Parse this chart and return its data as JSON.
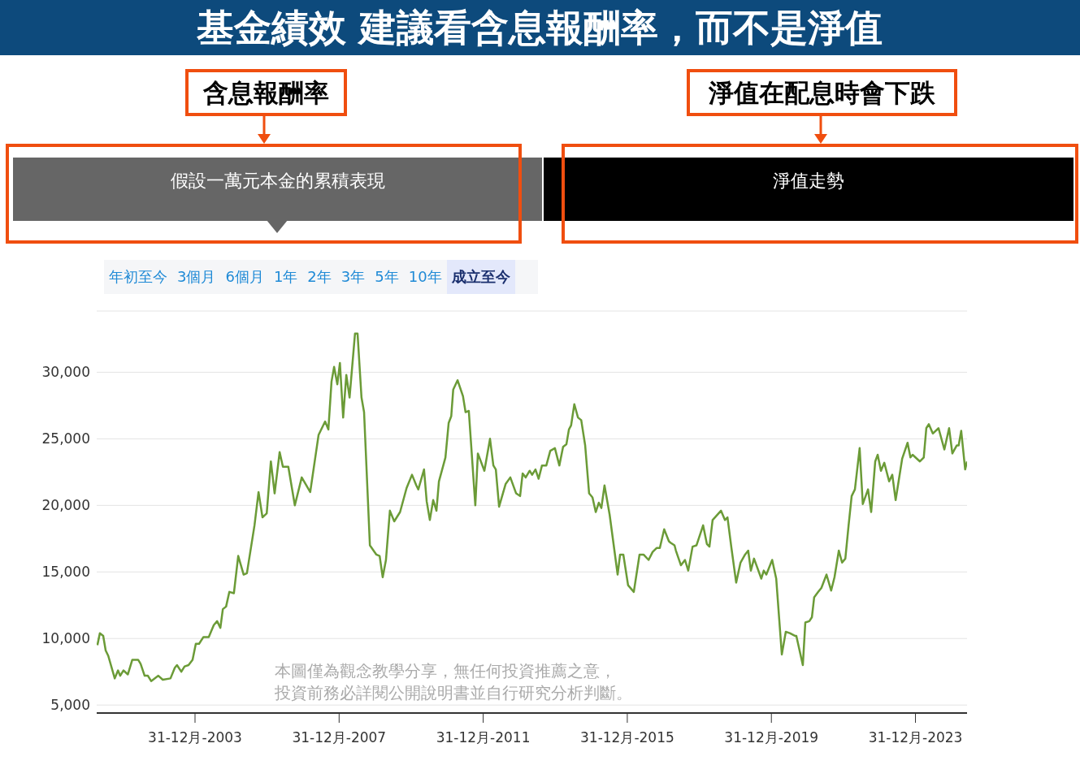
{
  "chart_data": {
    "type": "line",
    "title": "基金績效 建議看含息報酬率，而不是淨值",
    "annotations": [
      "含息報酬率",
      "淨值在配息時會下跌",
      "假設一萬元本金的累積表現",
      "淨值走勢",
      "年初至今",
      "3個月",
      "6個月",
      "1年",
      "2年",
      "3年",
      "5年",
      "10年",
      "成立至今",
      "本圖僅為觀念教學分享，無任何投資推薦之意，",
      "投資前務必詳閱公開說明書並自行研究分析判斷。"
    ],
    "x": [
      "2001-04-15",
      "2001-05-10",
      "2001-06-13",
      "2001-07-08",
      "2001-08-03",
      "2001-10-08",
      "2001-11-10",
      "2001-12-02",
      "2002-01-04",
      "2002-02-18",
      "2002-04-04",
      "2002-06-02",
      "2002-06-27",
      "2002-08-07",
      "2002-09-09",
      "2002-10-12",
      "2002-12-24",
      "2003-02-07",
      "2003-04-26",
      "2003-06-09",
      "2003-07-01",
      "2003-08-14",
      "2003-09-16",
      "2003-10-26",
      "2003-12-06",
      "2004-01-08",
      "2004-02-10",
      "2004-03-24",
      "2004-05-18",
      "2004-07-08",
      "2004-08-11",
      "2004-09-13",
      "2004-10-08",
      "2004-11-10",
      "2004-12-13",
      "2005-01-28",
      "2005-03-13",
      "2005-05-07",
      "2005-06-09",
      "2005-08-25",
      "2005-10-05",
      "2005-11-14",
      "2005-12-27",
      "2006-02-07",
      "2006-03-17",
      "2006-05-07",
      "2006-06-09",
      "2006-08-03",
      "2006-10-08",
      "2006-12-17",
      "2007-03-13",
      "2007-06-06",
      "2007-08-11",
      "2007-09-13",
      "2007-10-15",
      "2007-11-10",
      "2007-12-13",
      "2008-01-08",
      "2008-02-10",
      "2008-03-13",
      "2008-04-15",
      "2008-06-09",
      "2008-07-05",
      "2008-08-14",
      "2008-09-09",
      "2008-11-07",
      "2009-01-12",
      "2009-02-14",
      "2009-03-17",
      "2009-04-19",
      "2009-05-29",
      "2009-07-12",
      "2009-09-09",
      "2009-11-14",
      "2010-01-08",
      "2010-02-21",
      "2010-03-13",
      "2010-05-10",
      "2010-06-06",
      "2010-07-08",
      "2010-08-11",
      "2010-09-13",
      "2010-10-08",
      "2010-12-13",
      "2011-01-15",
      "2011-02-10",
      "2011-03-02",
      "2011-04-15",
      "2011-06-09",
      "2011-07-05",
      "2011-08-07",
      "2011-10-12",
      "2011-11-07",
      "2012-01-12",
      "2012-03-09",
      "2012-04-12",
      "2012-05-07",
      "2012-06-09",
      "2012-08-14",
      "2012-10-01",
      "2012-11-29",
      "2013-01-08",
      "2013-02-03",
      "2013-03-06",
      "2013-04-15",
      "2013-05-10",
      "2013-06-13",
      "2013-07-15",
      "2013-08-18",
      "2013-10-01",
      "2013-11-10",
      "2013-12-27",
      "2014-02-10",
      "2014-03-20",
      "2014-04-23",
      "2014-05-18",
      "2014-06-09",
      "2014-07-12",
      "2014-08-18",
      "2014-09-20",
      "2014-10-30",
      "2014-12-09",
      "2015-01-12",
      "2015-02-14",
      "2015-03-17",
      "2015-04-12",
      "2015-05-14",
      "2015-07-05",
      "2015-09-24",
      "2015-10-19",
      "2015-11-21",
      "2016-01-08",
      "2016-03-06",
      "2016-05-03",
      "2016-06-13",
      "2016-08-03",
      "2016-09-13",
      "2016-10-23",
      "2016-11-25",
      "2017-01-08",
      "2017-02-25",
      "2017-03-13",
      "2017-04-23",
      "2017-05-07",
      "2017-06-27",
      "2017-08-07",
      "2017-09-09",
      "2017-10-23",
      "2017-12-02",
      "2018-02-07",
      "2018-03-17",
      "2018-04-12",
      "2018-05-14",
      "2018-08-07",
      "2018-09-16",
      "2018-10-12",
      "2018-11-21",
      "2019-01-08",
      "2019-02-21",
      "2019-04-08",
      "2019-05-10",
      "2019-06-06",
      "2019-07-08",
      "2019-09-20",
      "2019-10-15",
      "2019-11-10",
      "2020-01-08",
      "2020-02-18",
      "2020-04-15",
      "2020-05-25",
      "2020-07-05",
      "2020-08-25",
      "2020-09-09",
      "2020-11-14",
      "2020-12-09",
      "2021-01-19",
      "2021-02-14",
      "2021-03-09",
      "2021-04-19",
      "2021-05-21",
      "2021-07-12",
      "2021-08-28",
      "2021-10-01",
      "2021-11-14",
      "2021-12-17",
      "2022-01-19",
      "2022-02-21",
      "2022-03-24",
      "2022-04-26",
      "2022-06-13",
      "2022-07-15",
      "2022-09-06",
      "2022-10-08",
      "2022-11-18",
      "2022-12-13",
      "2023-01-15",
      "2023-02-18",
      "2023-04-08",
      "2023-05-10",
      "2023-06-13",
      "2023-08-18",
      "2023-10-12",
      "2023-11-10",
      "2023-12-02",
      "2024-02-14",
      "2024-03-24",
      "2024-04-19",
      "2024-05-14",
      "2024-06-24",
      "2024-08-21",
      "2024-10-19",
      "2024-12-06",
      "2025-01-08",
      "2025-02-21",
      "2025-03-13",
      "2025-04-08",
      "2025-05-18",
      "2025-06-06"
    ],
    "series": [
      {
        "color": "#6b9b37",
        "values": [
          9500,
          10400,
          10200,
          9100,
          8700,
          7000,
          7600,
          7200,
          7600,
          7300,
          8400,
          8400,
          8100,
          7200,
          7200,
          6800,
          7200,
          6900,
          7000,
          7800,
          8000,
          7500,
          7900,
          8000,
          8400,
          9600,
          9600,
          10100,
          10100,
          11000,
          11300,
          10800,
          12200,
          12400,
          13500,
          13400,
          16200,
          14800,
          14900,
          18500,
          21000,
          19100,
          19400,
          23300,
          20900,
          24000,
          22900,
          22900,
          20000,
          22100,
          21000,
          25300,
          26300,
          25700,
          29300,
          30400,
          29100,
          30700,
          26600,
          29800,
          28100,
          32900,
          32900,
          28100,
          27000,
          17000,
          16300,
          16200,
          14600,
          15900,
          19600,
          18800,
          19500,
          21300,
          22300,
          21500,
          21200,
          22700,
          20300,
          18900,
          20400,
          19600,
          21800,
          23600,
          26200,
          26700,
          28700,
          29400,
          28200,
          27000,
          27100,
          20000,
          23900,
          22600,
          25000,
          23000,
          22700,
          19900,
          21600,
          22100,
          20900,
          20700,
          22400,
          22100,
          22600,
          22300,
          22700,
          22000,
          23000,
          23000,
          24100,
          24300,
          23000,
          24400,
          24600,
          25700,
          26000,
          27600,
          26600,
          26400,
          24500,
          20900,
          20600,
          19500,
          20200,
          19800,
          21500,
          19300,
          14800,
          16300,
          16300,
          14000,
          13500,
          16300,
          16300,
          15900,
          16500,
          16800,
          16800,
          18200,
          17300,
          17200,
          17000,
          16600,
          15500,
          15900,
          15100,
          16900,
          17000,
          18500,
          17100,
          16900,
          18900,
          19600,
          18900,
          19100,
          16800,
          14200,
          15700,
          16300,
          16600,
          15100,
          16000,
          14500,
          15100,
          14800,
          15900,
          14500,
          8800,
          10500,
          10400,
          10200,
          10200,
          8000,
          11200,
          11300,
          11600,
          13100,
          13500,
          13800,
          14800,
          13600,
          14600,
          16600,
          15700,
          16000,
          18500,
          20700,
          21200,
          24300,
          20100,
          21200,
          19500,
          23300,
          23800,
          22600,
          23200,
          21800,
          22300,
          20400,
          23500,
          24700,
          23600,
          23800,
          23300,
          23600,
          25800,
          26100,
          25400,
          25800,
          24200,
          25800,
          23900,
          24500,
          24500,
          25600,
          22700,
          23300
        ]
      }
    ],
    "xlim": [
      "2001-04-08",
      "2025-06-06"
    ],
    "ylim": [
      4400,
      34600
    ],
    "xticks": [
      {
        "value": "2003-12-31",
        "label": "31-12月-2003"
      },
      {
        "value": "2007-12-31",
        "label": "31-12月-2007"
      },
      {
        "value": "2011-12-31",
        "label": "31-12月-2011"
      },
      {
        "value": "2015-12-31",
        "label": "31-12月-2015"
      },
      {
        "value": "2019-12-31",
        "label": "31-12月-2019"
      },
      {
        "value": "2023-12-31",
        "label": "31-12月-2023"
      }
    ],
    "yticks": [
      {
        "value": 5000,
        "label": "5,000"
      },
      {
        "value": 10000,
        "label": "10,000"
      },
      {
        "value": 15000,
        "label": "15,000"
      },
      {
        "value": 20000,
        "label": "20,000"
      },
      {
        "value": 25000,
        "label": "25,000"
      },
      {
        "value": 30000,
        "label": "30,000"
      }
    ],
    "grid": "y",
    "legend": false,
    "marker": "none",
    "line_style": "solid"
  }
}
